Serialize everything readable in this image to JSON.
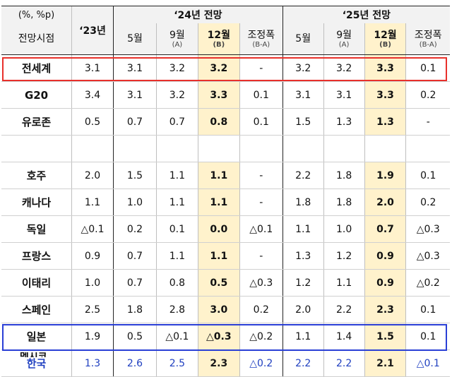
{
  "header": {
    "unit": "(%, %p)",
    "period_label": "전망시점",
    "y23": "‘23년",
    "y24_group": "‘24년 전망",
    "y25_group": "‘25년 전망",
    "sub_cols": [
      {
        "main": "5월",
        "sub": ""
      },
      {
        "main": "9월",
        "sub": "(A)"
      },
      {
        "main": "12월",
        "sub": "(B)"
      },
      {
        "main": "조정폭",
        "sub": "(B-A)"
      }
    ]
  },
  "rows": [
    {
      "name": "전세계",
      "y23": "3.1",
      "y24": [
        "3.1",
        "3.2",
        "3.2",
        "-"
      ],
      "y25": [
        "3.2",
        "3.2",
        "3.3",
        "0.1"
      ]
    },
    {
      "name": "G20",
      "y23": "3.4",
      "y24": [
        "3.1",
        "3.2",
        "3.3",
        "0.1"
      ],
      "y25": [
        "3.1",
        "3.1",
        "3.3",
        "0.2"
      ]
    },
    {
      "name": "유로존",
      "y23": "0.5",
      "y24": [
        "0.7",
        "0.7",
        "0.8",
        "0.1"
      ],
      "y25": [
        "1.5",
        "1.3",
        "1.3",
        "-"
      ]
    },
    {
      "name": "호주",
      "y23": "2.0",
      "y24": [
        "1.5",
        "1.1",
        "1.1",
        "-"
      ],
      "y25": [
        "2.2",
        "1.8",
        "1.9",
        "0.1"
      ]
    },
    {
      "name": "캐나다",
      "y23": "1.1",
      "y24": [
        "1.0",
        "1.1",
        "1.1",
        "-"
      ],
      "y25": [
        "1.8",
        "1.8",
        "2.0",
        "0.2"
      ]
    },
    {
      "name": "독일",
      "y23": "△0.1",
      "y24": [
        "0.2",
        "0.1",
        "0.0",
        "△0.1"
      ],
      "y25": [
        "1.1",
        "1.0",
        "0.7",
        "△0.3"
      ]
    },
    {
      "name": "프랑스",
      "y23": "0.9",
      "y24": [
        "0.7",
        "1.1",
        "1.1",
        "-"
      ],
      "y25": [
        "1.3",
        "1.2",
        "0.9",
        "△0.3"
      ]
    },
    {
      "name": "이태리",
      "y23": "1.0",
      "y24": [
        "0.7",
        "0.8",
        "0.5",
        "△0.3"
      ],
      "y25": [
        "1.2",
        "1.1",
        "0.9",
        "△0.2"
      ]
    },
    {
      "name": "스페인",
      "y23": "2.5",
      "y24": [
        "1.8",
        "2.8",
        "3.0",
        "0.2"
      ],
      "y25": [
        "2.0",
        "2.2",
        "2.3",
        "0.1"
      ]
    },
    {
      "name": "일본",
      "y23": "1.9",
      "y24": [
        "0.5",
        "△0.1",
        "△0.3",
        "△0.2"
      ],
      "y25": [
        "1.1",
        "1.4",
        "1.5",
        "0.1"
      ]
    },
    {
      "name": "한국",
      "y23": "1.3",
      "y24": [
        "2.6",
        "2.5",
        "2.3",
        "△0.2"
      ],
      "y25": [
        "2.2",
        "2.2",
        "2.1",
        "△0.1"
      ]
    }
  ],
  "cut_row": "멕시코",
  "colors": {
    "highlight": "#fff2cc",
    "red_box": "#e8302b",
    "blue_box": "#2a3fd6",
    "korea_text": "#1f3fc0"
  }
}
